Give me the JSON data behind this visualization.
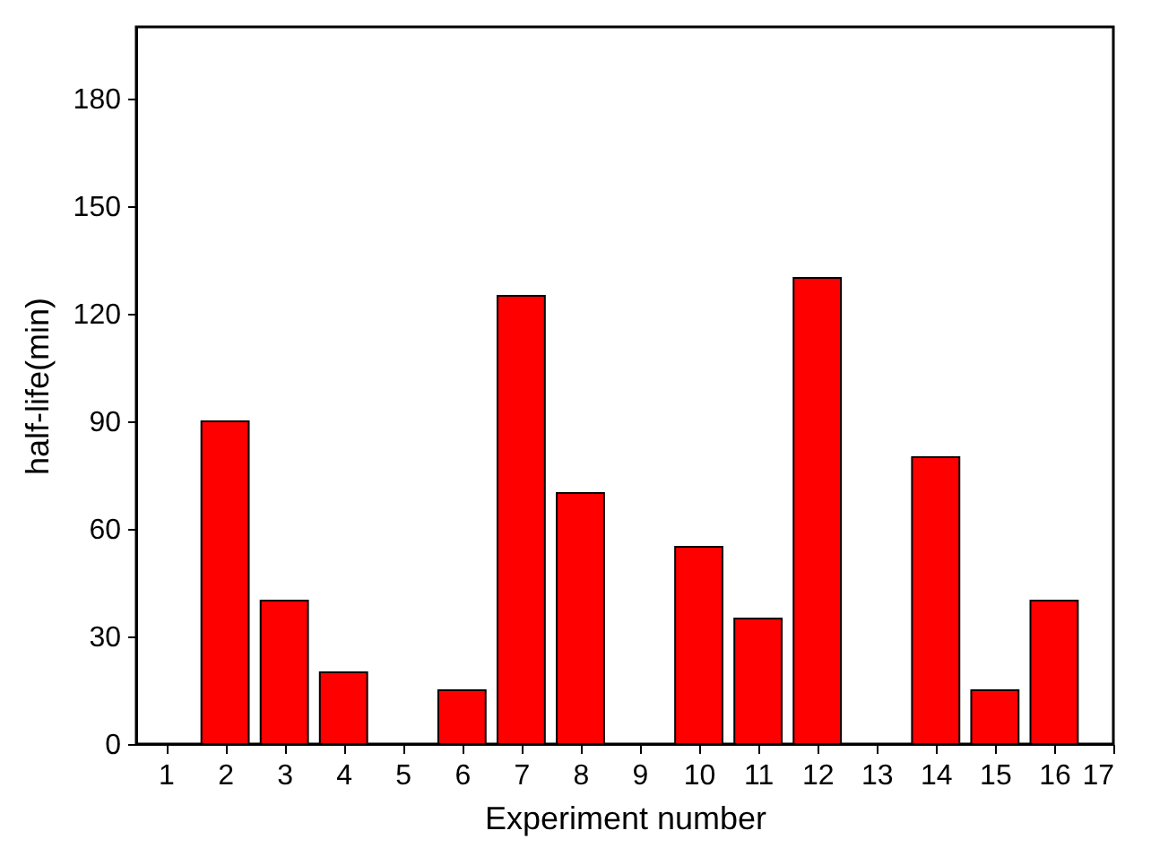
{
  "chart_data": {
    "type": "bar",
    "xlabel": "Experiment number",
    "ylabel": "half-life(min)",
    "x": [
      1,
      2,
      3,
      4,
      5,
      6,
      7,
      8,
      9,
      10,
      11,
      12,
      13,
      14,
      15,
      16,
      17
    ],
    "values": [
      0,
      90,
      40,
      20,
      0,
      15,
      125,
      70,
      0,
      55,
      35,
      130,
      0,
      80,
      15,
      40,
      0
    ],
    "color": "#ff0000",
    "xlim": [
      0.5,
      17
    ],
    "xticks": [
      1,
      2,
      3,
      4,
      5,
      6,
      7,
      8,
      9,
      10,
      11,
      12,
      13,
      14,
      15,
      16,
      17
    ],
    "ylim": [
      0,
      200
    ],
    "yticks": [
      0,
      30,
      60,
      90,
      120,
      150,
      180
    ],
    "grid": false,
    "legend": false
  }
}
